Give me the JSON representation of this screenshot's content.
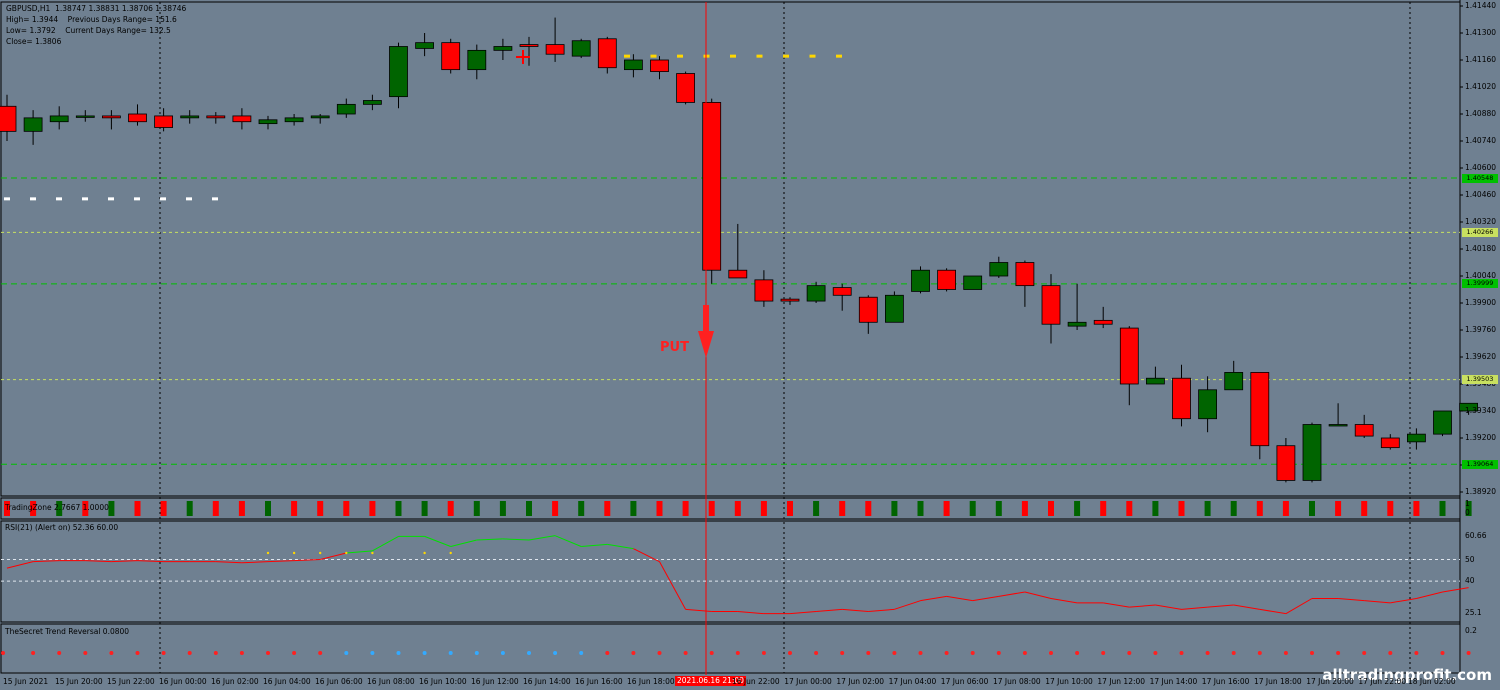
{
  "header": {
    "symbol_line": "GBPUSD,H1  1.38747 1.38831 1.38706 1.38746",
    "high_line": "High= 1.3944    Previous Days Range= 151.6",
    "low_line": "Low= 1.3792    Current Days Range= 132.5",
    "close_line": "Close= 1.3806"
  },
  "panels": {
    "trading_zone_label": "TradingZone 2.7667 1.0000",
    "rsi_label": "RSI(21) (Alert on) 52.36 60.00",
    "trend_label": "TheSecret Trend Reversal 0.0800"
  },
  "signal": {
    "label": "PUT"
  },
  "watermark": "alltradingprofit.com",
  "cursor_time": "2021.06.16 21:00",
  "colors": {
    "background": "#6f8091",
    "bull": "#006400",
    "bear": "#ff0000",
    "rsi_up": "#00e000",
    "rsi_down": "#ff0000"
  },
  "price_axis": [
    "1.41440",
    "1.41300",
    "1.41160",
    "1.41020",
    "1.40880",
    "1.40740",
    "1.40600",
    "1.40460",
    "1.40320",
    "1.40180",
    "1.40040",
    "1.39900",
    "1.39760",
    "1.39620",
    "1.39480",
    "1.39340",
    "1.39200",
    "1.39060",
    "1.38920"
  ],
  "price_tags": [
    {
      "value": "1.40548",
      "color": "#00c000"
    },
    {
      "value": "1.40266",
      "color": "#c8e060"
    },
    {
      "value": "1.39999",
      "color": "#00c000"
    },
    {
      "value": "1.39503",
      "color": "#c8e060"
    },
    {
      "value": "1.39064",
      "color": "#00c000"
    }
  ],
  "rsi_axis": [
    "60.66",
    "50",
    "40",
    "25.1"
  ],
  "trend_axis": [
    "0.2"
  ],
  "tz_axis": [
    "1",
    "0"
  ],
  "time_axis": [
    "15 Jun 2021",
    "15 Jun 20:00",
    "15 Jun 22:00",
    "16 Jun 00:00",
    "16 Jun 02:00",
    "16 Jun 04:00",
    "16 Jun 06:00",
    "16 Jun 08:00",
    "16 Jun 10:00",
    "16 Jun 12:00",
    "16 Jun 14:00",
    "16 Jun 16:00",
    "16 Jun 18:00",
    "16 Jun 22:00",
    "17 Jun 00:00",
    "17 Jun 02:00",
    "17 Jun 04:00",
    "17 Jun 06:00",
    "17 Jun 08:00",
    "17 Jun 10:00",
    "17 Jun 12:00",
    "17 Jun 14:00",
    "17 Jun 16:00",
    "17 Jun 18:00",
    "17 Jun 20:00",
    "17 Jun 22:00",
    "18 Jun 02:00"
  ],
  "chart_data": {
    "type": "candlestick",
    "ylim": [
      1.3892,
      1.4144
    ],
    "candles": [
      [
        1.4092,
        1.4098,
        1.4074,
        1.4079
      ],
      [
        1.4079,
        1.409,
        1.4072,
        1.4086
      ],
      [
        1.4084,
        1.4092,
        1.408,
        1.4087
      ],
      [
        1.4087,
        1.409,
        1.4084,
        1.4087
      ],
      [
        1.4087,
        1.409,
        1.408,
        1.4086
      ],
      [
        1.4088,
        1.4093,
        1.4082,
        1.4084
      ],
      [
        1.4087,
        1.4091,
        1.4079,
        1.4081
      ],
      [
        1.4086,
        1.409,
        1.4083,
        1.4087
      ],
      [
        1.4087,
        1.4089,
        1.4083,
        1.4086
      ],
      [
        1.4087,
        1.4091,
        1.408,
        1.4084
      ],
      [
        1.4083,
        1.4087,
        1.408,
        1.4085
      ],
      [
        1.4084,
        1.4088,
        1.4082,
        1.4086
      ],
      [
        1.4086,
        1.4088,
        1.4083,
        1.4087
      ],
      [
        1.4088,
        1.4096,
        1.4086,
        1.4093
      ],
      [
        1.4093,
        1.4098,
        1.409,
        1.4095
      ],
      [
        1.4097,
        1.4125,
        1.4091,
        1.4123
      ],
      [
        1.4122,
        1.413,
        1.4118,
        1.4125
      ],
      [
        1.4125,
        1.4127,
        1.4109,
        1.4111
      ],
      [
        1.4111,
        1.4124,
        1.4106,
        1.4121
      ],
      [
        1.4121,
        1.4127,
        1.4116,
        1.4123
      ],
      [
        1.4124,
        1.4128,
        1.4113,
        1.4123
      ],
      [
        1.4124,
        1.4138,
        1.4115,
        1.4119
      ],
      [
        1.4118,
        1.4127,
        1.4117,
        1.4126
      ],
      [
        1.4127,
        1.4128,
        1.4109,
        1.4112
      ],
      [
        1.4111,
        1.4119,
        1.4107,
        1.4116
      ],
      [
        1.4116,
        1.4118,
        1.4106,
        1.411
      ],
      [
        1.4109,
        1.411,
        1.4093,
        1.4094
      ],
      [
        1.4094,
        1.4096,
        1.4,
        1.4007
      ],
      [
        1.4007,
        1.4031,
        1.4004,
        1.4003
      ],
      [
        1.4002,
        1.4007,
        1.3988,
        1.3991
      ],
      [
        1.3992,
        1.3993,
        1.3989,
        1.3991
      ],
      [
        1.3991,
        1.4001,
        1.399,
        1.3999
      ],
      [
        1.3998,
        1.4,
        1.3986,
        1.3994
      ],
      [
        1.3993,
        1.3994,
        1.3974,
        1.398
      ],
      [
        1.398,
        1.3996,
        1.398,
        1.3994
      ],
      [
        1.3996,
        1.4009,
        1.3995,
        1.4007
      ],
      [
        1.4007,
        1.4008,
        1.3996,
        1.3997
      ],
      [
        1.3997,
        1.4004,
        1.3997,
        1.4004
      ],
      [
        1.4004,
        1.4014,
        1.4003,
        1.4011
      ],
      [
        1.4011,
        1.4012,
        1.3988,
        1.3999
      ],
      [
        1.3999,
        1.4005,
        1.3969,
        1.3979
      ],
      [
        1.3978,
        1.4,
        1.3976,
        1.398
      ],
      [
        1.3981,
        1.3988,
        1.3977,
        1.3979
      ],
      [
        1.3977,
        1.3978,
        1.3937,
        1.3948
      ],
      [
        1.3948,
        1.3957,
        1.3948,
        1.3951
      ],
      [
        1.3951,
        1.3958,
        1.3926,
        1.393
      ],
      [
        1.393,
        1.3952,
        1.3923,
        1.3945
      ],
      [
        1.3945,
        1.396,
        1.3945,
        1.3954
      ],
      [
        1.3954,
        1.3954,
        1.3909,
        1.3916
      ],
      [
        1.3916,
        1.392,
        1.3897,
        1.3898
      ],
      [
        1.3898,
        1.3928,
        1.3897,
        1.3927
      ],
      [
        1.3927,
        1.3938,
        1.3927,
        1.3927
      ],
      [
        1.3927,
        1.3932,
        1.392,
        1.3921
      ],
      [
        1.392,
        1.3922,
        1.3914,
        1.3915
      ],
      [
        1.3918,
        1.3925,
        1.3914,
        1.3922
      ],
      [
        1.3922,
        1.3934,
        1.3921,
        1.3934
      ],
      [
        1.3934,
        1.3938,
        1.3932,
        1.3938
      ]
    ],
    "tradingzone": [
      0,
      0,
      1,
      0,
      1,
      0,
      0,
      1,
      0,
      0,
      1,
      0,
      0,
      0,
      0,
      1,
      1,
      0,
      1,
      1,
      1,
      0,
      1,
      0,
      1,
      0,
      0,
      0,
      0,
      0,
      0,
      1,
      0,
      0,
      1,
      1,
      0,
      1,
      1,
      0,
      0,
      1,
      0,
      0,
      1,
      0,
      1,
      1,
      0,
      0,
      1,
      0,
      0,
      0,
      0,
      1,
      1
    ],
    "rsi": [
      46,
      49,
      49.5,
      49.5,
      49,
      49.5,
      49,
      49,
      49,
      48.5,
      49,
      49.5,
      50,
      53,
      54,
      60.66,
      60.66,
      56,
      59,
      59.5,
      59,
      61,
      56,
      57,
      55,
      49,
      27,
      26,
      26,
      25,
      25,
      26,
      27,
      26,
      27,
      31,
      33,
      31,
      33,
      35,
      32,
      30,
      30,
      28,
      29,
      27,
      28,
      29,
      27,
      25,
      32,
      32,
      31,
      30,
      32,
      35,
      37
    ],
    "rsi_upper_dots": [
      [
        10,
        53
      ],
      [
        11,
        53
      ],
      [
        12,
        53
      ],
      [
        13,
        53
      ],
      [
        14,
        53
      ],
      [
        16,
        53
      ],
      [
        17,
        53
      ]
    ],
    "trend_dots": [
      "r",
      "r",
      "r",
      "r",
      "r",
      "r",
      "r",
      "r",
      "r",
      "r",
      "r",
      "r",
      "r",
      "b",
      "b",
      "b",
      "b",
      "b",
      "b",
      "b",
      "b",
      "b",
      "b",
      "r",
      "r",
      "r",
      "r",
      "r",
      "r",
      "r",
      "r",
      "r",
      "r",
      "r",
      "r",
      "r",
      "r",
      "r",
      "r",
      "r",
      "r",
      "r",
      "r",
      "r",
      "r",
      "r",
      "r",
      "r",
      "r",
      "r",
      "r",
      "r",
      "r",
      "r",
      "r",
      "r",
      "r"
    ]
  }
}
